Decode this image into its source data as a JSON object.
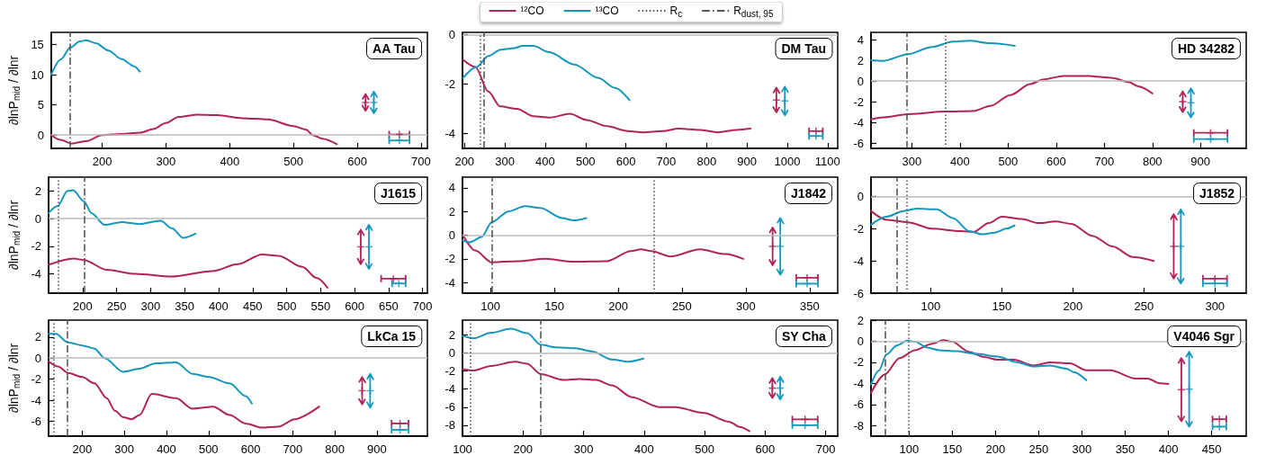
{
  "chart_data": [
    {
      "type": "line",
      "title": "AA Tau",
      "ylabel": "∂lnP$_{mid}$ / ∂lnr",
      "xlim": [
        120,
        710
      ],
      "xticks": [
        200,
        300,
        400,
        500,
        600,
        700
      ],
      "ylim": [
        -2.2,
        17
      ],
      "yticks": [
        0,
        5,
        10,
        15
      ],
      "marker": "none",
      "ref_lines": [
        {
          "axis": "y",
          "value": 0,
          "color": "#bbbbbb",
          "line_style": "solid"
        },
        {
          "axis": "x",
          "value": 150,
          "color": "#555555",
          "line_style": "dashdot"
        }
      ],
      "series": [
        {
          "color": "#b0245a",
          "x": [
            120,
            135,
            152,
            175,
            200,
            230,
            260,
            280,
            300,
            320,
            350,
            380,
            420,
            460,
            500,
            520,
            530,
            545,
            568
          ],
          "values": [
            0,
            -0.8,
            -1.4,
            -1.0,
            0.0,
            0.2,
            0.4,
            1.0,
            2.0,
            3.0,
            3.4,
            3.3,
            2.8,
            2.6,
            1.5,
            0.9,
            0,
            -0.6,
            -1.5
          ]
        },
        {
          "color": "#1497bd",
          "x": [
            120,
            135,
            150,
            165,
            175,
            190,
            210,
            230,
            250,
            259
          ],
          "values": [
            10,
            12.5,
            14.5,
            15.5,
            15.7,
            15.2,
            14,
            12.6,
            11.4,
            10.5
          ]
        },
        {
          "type": "scatter",
          "marker": "cross",
          "color": "#b0245a",
          "x": [
            613,
            666
          ],
          "values": [
            5.4,
            0.1
          ],
          "errors": [
            1.4,
            null
          ],
          "xerrors": [
            null,
            16
          ]
        },
        {
          "type": "scatter",
          "marker": "cross",
          "color": "#1497bd",
          "x": [
            626,
            666
          ],
          "values": [
            5.4,
            -0.9
          ],
          "errors": [
            1.8,
            null
          ],
          "xerrors": [
            null,
            16
          ]
        }
      ]
    },
    {
      "type": "line",
      "title": "DM Tau",
      "xlim": [
        195,
        1125
      ],
      "xticks": [
        200,
        300,
        400,
        500,
        600,
        700,
        800,
        900,
        1000,
        1100
      ],
      "ylim": [
        -4.6,
        0.1
      ],
      "yticks": [
        -4,
        -2,
        0
      ],
      "marker": "none",
      "legend": "top",
      "ref_lines": [
        {
          "axis": "y",
          "value": 0,
          "color": "#bbbbbb",
          "line_style": "solid"
        },
        {
          "axis": "x",
          "value": 240,
          "color": "#555555",
          "line_style": "dotted",
          "label": "R$_{c}$"
        },
        {
          "axis": "x",
          "value": 248,
          "color": "#555555",
          "line_style": "dashdot",
          "label": "R$_{dust, 95}$"
        }
      ],
      "series": [
        {
          "name": "¹²CO",
          "color": "#b0245a",
          "x": [
            196,
            227,
            259,
            288,
            330,
            371,
            411,
            461,
            503,
            553,
            604,
            642,
            691,
            731,
            783,
            828,
            875,
            909
          ],
          "values": [
            -1.0,
            -1.3,
            -2.3,
            -2.9,
            -3.0,
            -3.3,
            -3.35,
            -3.2,
            -3.45,
            -3.7,
            -3.9,
            -3.95,
            -3.9,
            -3.8,
            -3.85,
            -3.95,
            -3.85,
            -3.8
          ]
        },
        {
          "name": "¹³CO",
          "color": "#1497bd",
          "x": [
            196,
            230,
            259,
            290,
            319,
            345,
            371,
            410,
            472,
            532,
            573,
            609
          ],
          "values": [
            -1.75,
            -1.3,
            -0.86,
            -0.6,
            -0.55,
            -0.45,
            -0.45,
            -0.7,
            -1.2,
            -1.75,
            -2.15,
            -2.65
          ]
        },
        {
          "type": "scatter",
          "marker": "cross",
          "color": "#b0245a",
          "x": [
            973,
            1071
          ],
          "values": [
            -2.64,
            -3.9
          ],
          "errors": [
            0.5,
            null
          ],
          "xerrors": [
            null,
            17
          ]
        },
        {
          "type": "scatter",
          "marker": "cross",
          "color": "#1497bd",
          "x": [
            994,
            1071
          ],
          "values": [
            -2.68,
            -4.1
          ],
          "errors": [
            0.58,
            null
          ],
          "xerrors": [
            null,
            17
          ]
        }
      ]
    },
    {
      "type": "line",
      "title": "HD 34282",
      "xlim": [
        215,
        995
      ],
      "xticks": [
        300,
        400,
        500,
        600,
        700,
        800,
        900
      ],
      "ylim": [
        -6.5,
        4.7
      ],
      "yticks": [
        -6,
        -4,
        -2,
        0,
        2,
        4
      ],
      "marker": "none",
      "ref_lines": [
        {
          "axis": "y",
          "value": 0,
          "color": "#bbbbbb",
          "line_style": "solid"
        },
        {
          "axis": "x",
          "value": 370,
          "color": "#555555",
          "line_style": "dotted"
        },
        {
          "axis": "x",
          "value": 290,
          "color": "#555555",
          "line_style": "dashdot"
        }
      ],
      "series": [
        {
          "color": "#b0245a",
          "x": [
            215,
            241,
            292,
            371,
            428,
            463,
            505,
            546,
            572,
            616,
            666,
            717,
            751,
            770,
            800
          ],
          "values": [
            -3.7,
            -3.5,
            -3.2,
            -2.95,
            -2.9,
            -2.4,
            -1.35,
            -0.3,
            0.15,
            0.5,
            0.5,
            0.3,
            -0.1,
            -0.5,
            -1.2
          ]
        },
        {
          "color": "#1497bd",
          "x": [
            215,
            241,
            292,
            342,
            386,
            420,
            463,
            514
          ],
          "values": [
            2.0,
            1.95,
            2.6,
            3.3,
            3.8,
            3.9,
            3.65,
            3.4
          ]
        },
        {
          "type": "scatter",
          "marker": "cross",
          "color": "#b0245a",
          "x": [
            863,
            921
          ],
          "values": [
            -2.0,
            -5.0
          ],
          "errors": [
            1.0,
            null
          ],
          "xerrors": [
            null,
            35
          ]
        },
        {
          "type": "scatter",
          "marker": "cross",
          "color": "#1497bd",
          "x": [
            880,
            921
          ],
          "values": [
            -2.1,
            -5.6
          ],
          "errors": [
            1.4,
            null
          ],
          "xerrors": [
            null,
            35
          ]
        }
      ]
    },
    {
      "type": "line",
      "title": "J1615",
      "ylabel": "∂lnP$_{mid}$ / ∂lnr",
      "xlim": [
        150,
        707
      ],
      "xticks": [
        200,
        250,
        300,
        350,
        400,
        450,
        500,
        550,
        600,
        650,
        700
      ],
      "ylim": [
        -5.4,
        3.0
      ],
      "yticks": [
        -4,
        -2,
        0,
        2
      ],
      "marker": "none",
      "ref_lines": [
        {
          "axis": "y",
          "value": 0,
          "color": "#bbbbbb",
          "line_style": "solid"
        },
        {
          "axis": "x",
          "value": 164,
          "color": "#555555",
          "line_style": "dotted"
        },
        {
          "axis": "x",
          "value": 202,
          "color": "#555555",
          "line_style": "dashdot"
        }
      ],
      "series": [
        {
          "color": "#b0245a",
          "x": [
            150,
            187,
            202,
            235,
            277,
            331,
            391,
            428,
            464,
            488,
            523,
            544,
            560
          ],
          "values": [
            -3.35,
            -2.9,
            -3.0,
            -3.7,
            -4.0,
            -4.2,
            -3.8,
            -3.3,
            -2.6,
            -2.7,
            -3.5,
            -4.3,
            -5.0
          ]
        },
        {
          "color": "#1497bd",
          "x": [
            150,
            163,
            178,
            186,
            202,
            213,
            232,
            258,
            283,
            315,
            331,
            348,
            366
          ],
          "values": [
            0.4,
            0.9,
            2.0,
            2.05,
            1.25,
            0.4,
            -0.45,
            -0.25,
            -0.4,
            -0.15,
            -0.7,
            -1.4,
            -1.1
          ]
        },
        {
          "type": "scatter",
          "marker": "cross",
          "color": "#b0245a",
          "x": [
            609,
            657
          ],
          "values": [
            -2.05,
            -4.35
          ],
          "errors": [
            1.25,
            null
          ],
          "xerrors": [
            null,
            18
          ]
        },
        {
          "type": "scatter",
          "marker": "cross",
          "color": "#1497bd",
          "x": [
            621,
            665
          ],
          "values": [
            -2.05,
            -4.7
          ],
          "errors": [
            1.6,
            null
          ],
          "xerrors": [
            null,
            10
          ]
        }
      ]
    },
    {
      "type": "line",
      "title": "J1842",
      "xlim": [
        78,
        372
      ],
      "xticks": [
        100,
        150,
        200,
        250,
        300,
        350
      ],
      "ylim": [
        -4.9,
        4.9
      ],
      "yticks": [
        -4,
        -2,
        0,
        2,
        4
      ],
      "marker": "none",
      "ref_lines": [
        {
          "axis": "y",
          "value": 0,
          "color": "#bbbbbb",
          "line_style": "solid"
        },
        {
          "axis": "x",
          "value": 228,
          "color": "#555555",
          "line_style": "dotted"
        },
        {
          "axis": "x",
          "value": 101,
          "color": "#555555",
          "line_style": "dashdot"
        }
      ],
      "series": [
        {
          "color": "#b0245a",
          "x": [
            78,
            88,
            101,
            121,
            143,
            165,
            191,
            210,
            218,
            226,
            241,
            264,
            284,
            298
          ],
          "values": [
            0.05,
            -1.3,
            -2.3,
            -2.2,
            -2.0,
            -2.25,
            -2.2,
            -1.35,
            -1.2,
            -1.35,
            -1.8,
            -1.2,
            -1.6,
            -2.0
          ]
        },
        {
          "color": "#1497bd",
          "x": [
            78,
            84,
            93,
            101,
            114,
            127,
            139,
            156,
            165,
            175
          ],
          "values": [
            -0.45,
            -0.6,
            -0.15,
            1.1,
            2.0,
            2.45,
            2.3,
            1.45,
            1.25,
            1.45
          ]
        },
        {
          "type": "scatter",
          "marker": "cross",
          "color": "#b0245a",
          "x": [
            321,
            348
          ],
          "values": [
            -0.95,
            -3.6
          ],
          "errors": [
            1.6,
            null
          ],
          "xerrors": [
            null,
            8.5
          ]
        },
        {
          "type": "scatter",
          "marker": "cross",
          "color": "#1497bd",
          "x": [
            327,
            348
          ],
          "values": [
            -0.95,
            -4.1
          ],
          "errors": [
            2.4,
            null
          ],
          "xerrors": [
            null,
            8.5
          ]
        }
      ]
    },
    {
      "type": "line",
      "title": "J1852",
      "xlim": [
        58,
        322
      ],
      "xticks": [
        100,
        150,
        200,
        250,
        300
      ],
      "ylim": [
        -6,
        1.2
      ],
      "yticks": [
        -6,
        -4,
        -2,
        0
      ],
      "marker": "none",
      "ref_lines": [
        {
          "axis": "y",
          "value": 0,
          "color": "#bbbbbb",
          "line_style": "solid"
        },
        {
          "axis": "x",
          "value": 83,
          "color": "#555555",
          "line_style": "dotted"
        },
        {
          "axis": "x",
          "value": 76,
          "color": "#555555",
          "line_style": "dashdot"
        }
      ],
      "series": [
        {
          "color": "#b0245a",
          "x": [
            58,
            69,
            84,
            101,
            121,
            130,
            141,
            150,
            164,
            176,
            188,
            199,
            214,
            228,
            242,
            257
          ],
          "values": [
            -0.9,
            -1.45,
            -1.6,
            -2.0,
            -2.15,
            -2.2,
            -1.65,
            -1.25,
            -1.4,
            -1.65,
            -1.55,
            -1.7,
            -2.45,
            -3.1,
            -3.75,
            -4.0
          ]
        },
        {
          "color": "#1497bd",
          "x": [
            58,
            69,
            81,
            90,
            104,
            116,
            127,
            136,
            145,
            153,
            159
          ],
          "values": [
            -1.75,
            -1.25,
            -0.9,
            -0.75,
            -0.8,
            -1.35,
            -2.15,
            -2.35,
            -2.25,
            -2.0,
            -1.8
          ]
        },
        {
          "type": "scatter",
          "marker": "cross",
          "color": "#b0245a",
          "x": [
            271,
            300
          ],
          "values": [
            -3.1,
            -5.1
          ],
          "errors": [
            2.0,
            null
          ],
          "xerrors": [
            null,
            8.5
          ]
        },
        {
          "type": "scatter",
          "marker": "cross",
          "color": "#1497bd",
          "x": [
            276,
            300
          ],
          "values": [
            -3.1,
            -5.4
          ],
          "errors": [
            2.3,
            null
          ],
          "xerrors": [
            null,
            8.5
          ]
        }
      ]
    },
    {
      "type": "line",
      "title": "LkCa 15",
      "ylabel": "∂lnP$_{mid}$ / ∂lnr",
      "xlim": [
        120,
        1020
      ],
      "xticks": [
        200,
        300,
        400,
        500,
        600,
        700,
        800,
        900
      ],
      "ylim": [
        -7.4,
        3.6
      ],
      "yticks": [
        -6,
        -4,
        -2,
        0,
        2
      ],
      "marker": "none",
      "ref_lines": [
        {
          "axis": "y",
          "value": 0,
          "color": "#bbbbbb",
          "line_style": "solid"
        },
        {
          "axis": "x",
          "value": 132,
          "color": "#555555",
          "line_style": "dotted"
        },
        {
          "axis": "x",
          "value": 165,
          "color": "#555555",
          "line_style": "dashdot"
        }
      ],
      "series": [
        {
          "color": "#b0245a",
          "x": [
            120,
            142,
            166,
            200,
            229,
            258,
            278,
            297,
            317,
            336,
            365,
            423,
            462,
            511,
            550,
            588,
            627,
            666,
            705,
            763
          ],
          "values": [
            -0.3,
            -0.8,
            -1.4,
            -1.8,
            -2.4,
            -3.8,
            -5.0,
            -5.6,
            -5.8,
            -5.4,
            -3.4,
            -3.8,
            -4.8,
            -4.6,
            -5.4,
            -6.2,
            -6.6,
            -6.5,
            -5.8,
            -4.6
          ]
        },
        {
          "color": "#1497bd",
          "x": [
            120,
            137,
            166,
            200,
            229,
            253,
            297,
            336,
            375,
            423,
            462,
            501,
            550,
            588,
            603
          ],
          "values": [
            2.3,
            2.3,
            1.5,
            1.2,
            0.9,
            0,
            -1.3,
            -1.0,
            -0.5,
            -0.4,
            -1.5,
            -1.8,
            -2.4,
            -3.6,
            -4.3
          ]
        },
        {
          "type": "scatter",
          "marker": "cross",
          "color": "#b0245a",
          "x": [
            865,
            955
          ],
          "values": [
            -3.1,
            -6.2
          ],
          "errors": [
            1.3,
            null
          ],
          "xerrors": [
            null,
            20
          ]
        },
        {
          "type": "scatter",
          "marker": "cross",
          "color": "#1497bd",
          "x": [
            884,
            955
          ],
          "values": [
            -3.1,
            -6.8
          ],
          "errors": [
            1.6,
            null
          ],
          "xerrors": [
            null,
            20
          ]
        }
      ]
    },
    {
      "type": "line",
      "title": "SY Cha",
      "xlim": [
        100,
        720
      ],
      "xticks": [
        100,
        200,
        300,
        400,
        500,
        600,
        700
      ],
      "ylim": [
        -9.2,
        3.6
      ],
      "yticks": [
        -8,
        -6,
        -4,
        -2,
        0,
        2
      ],
      "marker": "none",
      "ref_lines": [
        {
          "axis": "y",
          "value": 0,
          "color": "#bbbbbb",
          "line_style": "solid"
        },
        {
          "axis": "x",
          "value": 113,
          "color": "#555555",
          "line_style": "dotted"
        },
        {
          "axis": "x",
          "value": 229,
          "color": "#555555",
          "line_style": "dashdot"
        }
      ],
      "series": [
        {
          "color": "#b0245a",
          "x": [
            100,
            119,
            147,
            187,
            207,
            229,
            267,
            294,
            321,
            347,
            380,
            425,
            452,
            499,
            540,
            559,
            574
          ],
          "values": [
            -1.8,
            -1.95,
            -1.45,
            -1.0,
            -1.2,
            -2.35,
            -3.0,
            -2.9,
            -3.0,
            -3.6,
            -4.9,
            -6.0,
            -6.0,
            -6.65,
            -7.6,
            -8.2,
            -8.65
          ]
        },
        {
          "color": "#1497bd",
          "x": [
            100,
            119,
            147,
            180,
            207,
            229,
            254,
            287,
            314,
            347,
            374,
            399
          ],
          "values": [
            1.85,
            1.6,
            2.2,
            2.65,
            2.15,
            0.9,
            0.6,
            0.5,
            0.15,
            -0.75,
            -1.0,
            -0.65
          ]
        },
        {
          "type": "scatter",
          "marker": "cross",
          "color": "#b0245a",
          "x": [
            612,
            666
          ],
          "values": [
            -3.9,
            -7.35
          ],
          "errors": [
            1.1,
            null
          ],
          "xerrors": [
            null,
            21
          ]
        },
        {
          "type": "scatter",
          "marker": "cross",
          "color": "#1497bd",
          "x": [
            625,
            666
          ],
          "values": [
            -3.9,
            -8.0
          ],
          "errors": [
            1.25,
            null
          ],
          "xerrors": [
            null,
            21
          ]
        }
      ]
    },
    {
      "type": "line",
      "title": "V4046 Sgr",
      "xlim": [
        56,
        490
      ],
      "xticks": [
        100,
        150,
        200,
        250,
        300,
        350,
        400,
        450
      ],
      "ylim": [
        -9,
        2
      ],
      "yticks": [
        -8,
        -6,
        -4,
        -2,
        0,
        2
      ],
      "marker": "none",
      "ref_lines": [
        {
          "axis": "y",
          "value": 0,
          "color": "#bbbbbb",
          "line_style": "solid"
        },
        {
          "axis": "x",
          "value": 99,
          "color": "#555555",
          "line_style": "dotted"
        },
        {
          "axis": "x",
          "value": 72,
          "color": "#555555",
          "line_style": "dashdot"
        }
      ],
      "series": [
        {
          "color": "#b0245a",
          "x": [
            56,
            72,
            89,
            107,
            126,
            140,
            150,
            169,
            187,
            202,
            221,
            244,
            263,
            286,
            305,
            333,
            362,
            376,
            390,
            400
          ],
          "values": [
            -4.9,
            -3.15,
            -1.6,
            -0.85,
            -0.25,
            0.1,
            -0.05,
            -1.0,
            -1.5,
            -1.75,
            -1.75,
            -2.3,
            -2.0,
            -2.1,
            -2.75,
            -2.75,
            -3.55,
            -3.55,
            -4.0,
            -4.05
          ]
        },
        {
          "color": "#1497bd",
          "x": [
            56,
            65,
            74,
            86,
            98,
            107,
            121,
            135,
            154,
            178,
            202,
            225,
            244,
            263,
            282,
            291,
            305
          ],
          "values": [
            -4.1,
            -2.8,
            -1.25,
            -0.4,
            0.05,
            -0.05,
            -0.6,
            -0.85,
            -0.95,
            -1.2,
            -1.45,
            -2.0,
            -2.4,
            -2.3,
            -2.6,
            -2.95,
            -3.7
          ]
        },
        {
          "type": "scatter",
          "marker": "cross",
          "color": "#b0245a",
          "x": [
            415,
            459
          ],
          "values": [
            -4.6,
            -7.4
          ],
          "errors": [
            3.0,
            null
          ],
          "xerrors": [
            null,
            8
          ]
        },
        {
          "type": "scatter",
          "marker": "cross",
          "color": "#1497bd",
          "x": [
            424,
            459
          ],
          "values": [
            -4.55,
            -8.1
          ],
          "errors": [
            3.55,
            null
          ],
          "xerrors": [
            null,
            8
          ]
        }
      ]
    }
  ]
}
